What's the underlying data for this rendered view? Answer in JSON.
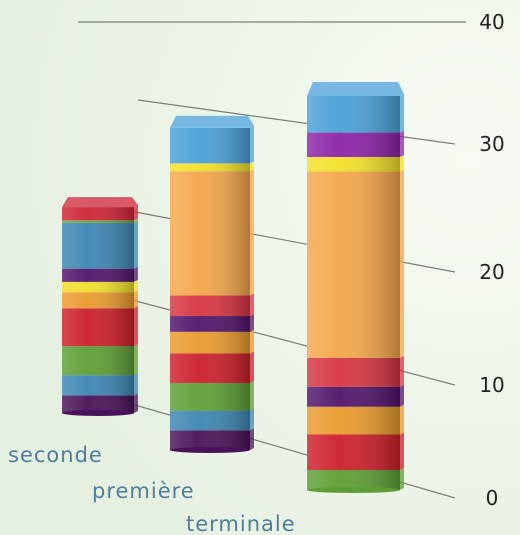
{
  "chart_data": {
    "type": "bar",
    "stacked": true,
    "three_d": true,
    "categories": [
      "seconde",
      "première",
      "terminale"
    ],
    "ylim": [
      0,
      40
    ],
    "yticks": [
      0,
      10,
      20,
      30,
      40
    ],
    "segments": [
      [
        {
          "value": 2.0,
          "color": "#4a1258"
        },
        {
          "value": 2.3,
          "color": "#3d86b3"
        },
        {
          "value": 3.3,
          "color": "#5d9e34"
        },
        {
          "value": 4.3,
          "color": "#cc1f2b"
        },
        {
          "value": 1.8,
          "color": "#e99a2e"
        },
        {
          "value": 1.2,
          "color": "#f1dc2d"
        },
        {
          "value": 1.5,
          "color": "#51146a"
        },
        {
          "value": 5.2,
          "color": "#3d86b3"
        },
        {
          "value": 0.3,
          "color": "#6aa63c"
        },
        {
          "value": 1.5,
          "color": "#cf2336"
        }
      ],
      [
        {
          "value": 2.0,
          "color": "#4a1258"
        },
        {
          "value": 2.0,
          "color": "#3d86b3"
        },
        {
          "value": 2.8,
          "color": "#5d9e34"
        },
        {
          "value": 3.0,
          "color": "#cc1f2b"
        },
        {
          "value": 2.2,
          "color": "#e99a2e"
        },
        {
          "value": 1.6,
          "color": "#51146a"
        },
        {
          "value": 2.1,
          "color": "#d73443"
        },
        {
          "value": 12.6,
          "color": "#f4a64a"
        },
        {
          "value": 0.8,
          "color": "#f3e02a"
        },
        {
          "value": 3.6,
          "color": "#4aa0d8"
        }
      ],
      [
        {
          "value": 1.8,
          "color": "#5d9e34"
        },
        {
          "value": 3.2,
          "color": "#cc1f2b"
        },
        {
          "value": 2.5,
          "color": "#e99a2e"
        },
        {
          "value": 1.8,
          "color": "#51146a"
        },
        {
          "value": 2.6,
          "color": "#d73443"
        },
        {
          "value": 16.8,
          "color": "#f4a64a"
        },
        {
          "value": 1.3,
          "color": "#f3e02a"
        },
        {
          "value": 2.2,
          "color": "#8c23a8"
        },
        {
          "value": 3.3,
          "color": "#4aa0d8"
        }
      ]
    ]
  }
}
